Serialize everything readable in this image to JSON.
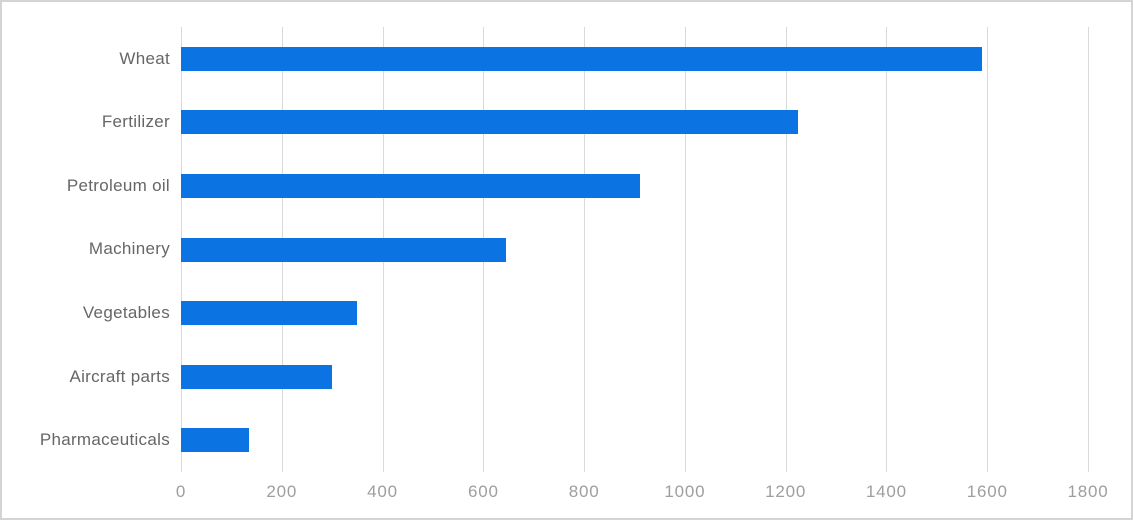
{
  "window": {
    "background": "#ffffff",
    "border_color": "#d4d4d4"
  },
  "chart_data": {
    "type": "bar",
    "orientation": "horizontal",
    "title": "",
    "xlabel": "",
    "ylabel": "",
    "categories": [
      "Wheat",
      "Fertilizer",
      "Petroleum oil",
      "Machinery",
      "Vegetables",
      "Aircraft parts",
      "Pharmaceuticals"
    ],
    "values": [
      1590,
      1225,
      910,
      645,
      350,
      300,
      135
    ],
    "xlim": [
      0,
      1800
    ],
    "x_ticks": [
      0,
      200,
      400,
      600,
      800,
      1000,
      1200,
      1400,
      1600,
      1800
    ],
    "grid": "vertical-only",
    "legend": "none",
    "bar_color": "#0b74e2",
    "grid_color": "#d9d9d9",
    "category_label_color": "#666666",
    "tick_label_color": "#9e9e9e"
  }
}
